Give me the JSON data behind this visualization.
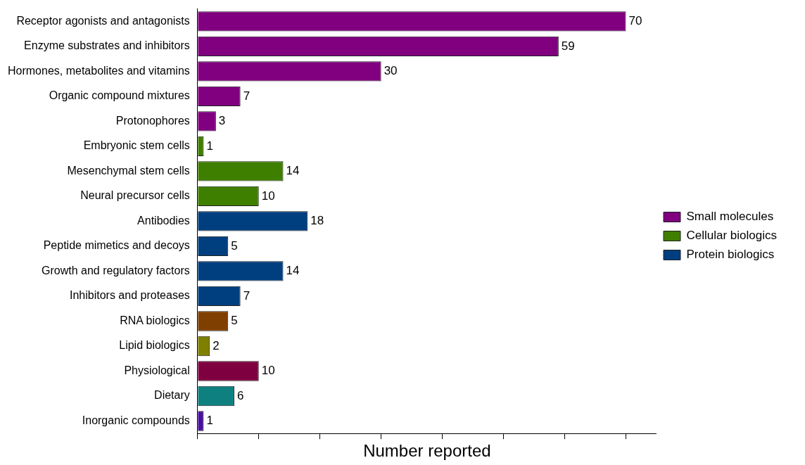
{
  "chart_data": {
    "type": "bar",
    "orientation": "horizontal",
    "xlabel": "Number reported",
    "categories": [
      "Receptor agonists and antagonists",
      "Enzyme substrates and inhibitors",
      "Hormones, metabolites and vitamins",
      "Organic compound mixtures",
      "Protonophores",
      "Embryonic stem cells",
      "Mesenchymal stem cells",
      "Neural precursor cells",
      "Antibodies",
      "Peptide mimetics and decoys",
      "Growth and regulatory factors",
      "Inhibitors and proteases",
      "RNA biologics",
      "Lipid biologics",
      "Physiological",
      "Dietary",
      "Inorganic compounds"
    ],
    "series": [
      {
        "name": "Small molecules",
        "color": "#800080",
        "values": [
          70,
          59,
          30,
          7,
          3,
          null,
          null,
          null,
          null,
          null,
          null,
          null,
          null,
          null,
          null,
          null,
          null
        ]
      },
      {
        "name": "Cellular biologics",
        "color": "#3f7f00",
        "values": [
          null,
          null,
          null,
          null,
          null,
          1,
          14,
          10,
          null,
          null,
          null,
          null,
          null,
          null,
          null,
          null,
          null
        ]
      },
      {
        "name": "Protein biologics",
        "color": "#003f7f",
        "values": [
          null,
          null,
          null,
          null,
          null,
          null,
          null,
          null,
          18,
          5,
          14,
          7,
          null,
          null,
          null,
          null,
          null
        ]
      },
      {
        "colors": [
          null,
          null,
          null,
          null,
          null,
          null,
          null,
          null,
          null,
          null,
          null,
          null,
          "#7f3f00",
          "#808000",
          "#7f0040",
          "#0f8080",
          "#4b0fa0"
        ],
        "values": [
          null,
          null,
          null,
          null,
          null,
          null,
          null,
          null,
          null,
          null,
          null,
          null,
          5,
          2,
          10,
          6,
          1
        ]
      }
    ],
    "xlim": [
      0,
      75
    ],
    "xticks": [
      {
        "value": 0,
        "label": null
      },
      {
        "value": 10,
        "label": null
      },
      {
        "value": 20,
        "label": null
      },
      {
        "value": 30,
        "label": null
      },
      {
        "value": 40,
        "label": null
      },
      {
        "value": 50,
        "label": null
      },
      {
        "value": 60,
        "label": null
      },
      {
        "value": 70,
        "label": null
      }
    ],
    "tick_labels": "y",
    "grid": false,
    "legend": "right",
    "data_labels": true
  }
}
